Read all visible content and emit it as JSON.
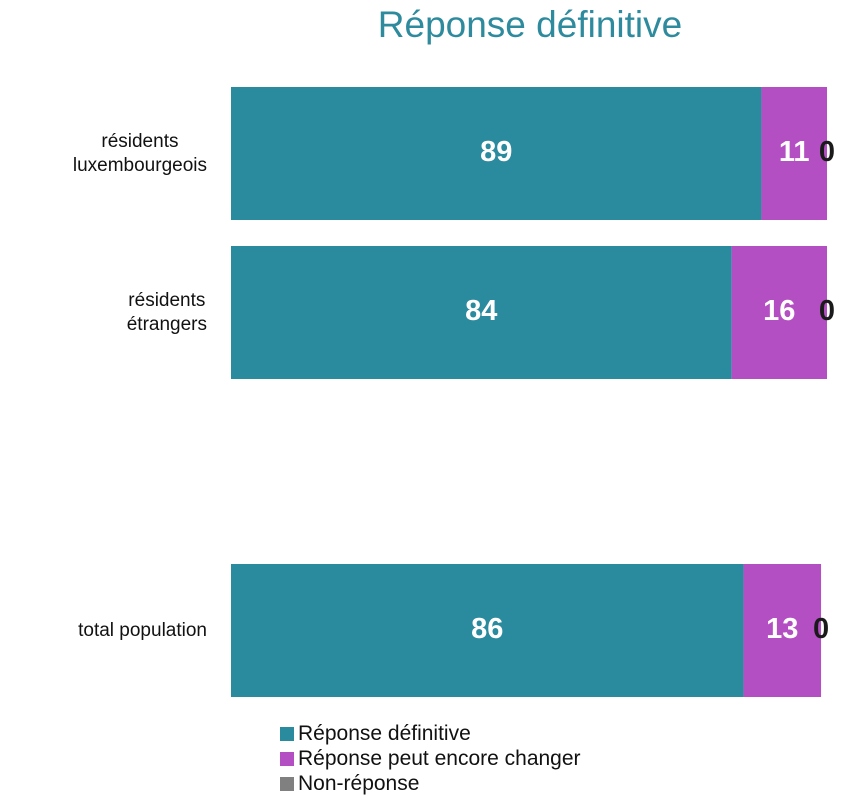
{
  "chart_data": {
    "type": "stacked-barh",
    "title": "Réponse définitive",
    "categories": [
      "résidents\nluxembourgeois",
      "résidents\nétrangers",
      null,
      "total population"
    ],
    "series": [
      {
        "name": "Réponse définitive",
        "color": "#2a8a9e",
        "label_color": "#ffffff",
        "values": [
          89,
          84,
          null,
          86
        ]
      },
      {
        "name": "Réponse peut encore changer",
        "color": "#b44fc3",
        "label_color": "#ffffff",
        "values": [
          11,
          16,
          null,
          13
        ]
      },
      {
        "name": "Non-réponse",
        "color": "#808080",
        "label_color": "#1a1a1a",
        "values": [
          0,
          0,
          null,
          0
        ]
      }
    ],
    "xlim": [
      0,
      100
    ],
    "title_color": "#2e8b9e"
  }
}
